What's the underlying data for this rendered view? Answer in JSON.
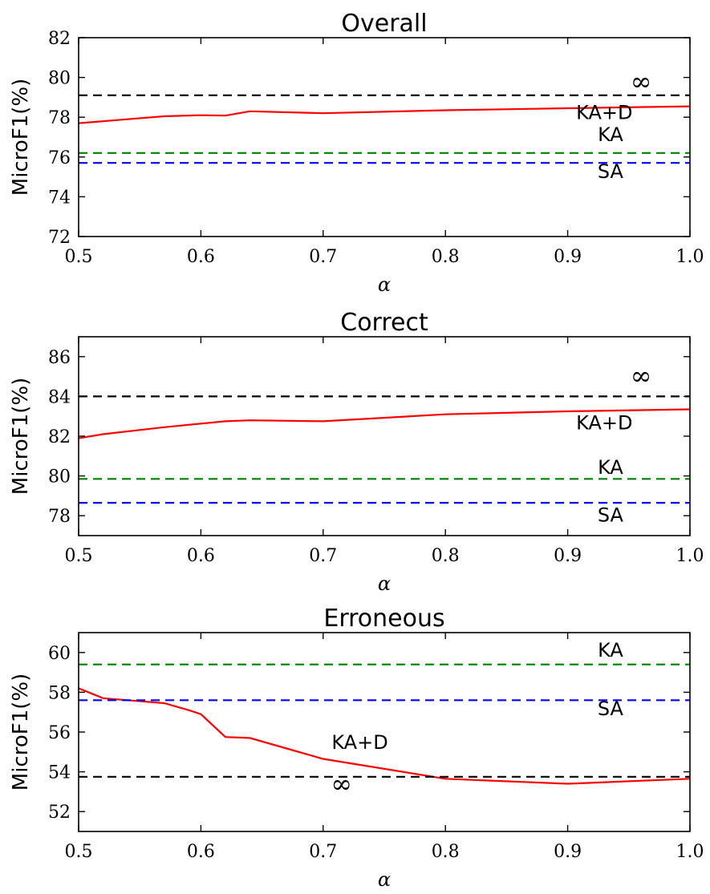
{
  "chart_data": [
    {
      "type": "line",
      "title": "Overall",
      "xlabel": "α",
      "ylabel": "MicroF1(%)",
      "xlim": [
        0.5,
        1.0
      ],
      "ylim": [
        72,
        82
      ],
      "xticks": [
        0.5,
        0.6,
        0.7,
        0.8,
        0.9,
        1.0
      ],
      "xtick_labels": [
        "0.5",
        "0.6",
        "0.7",
        "0.8",
        "0.9",
        "1.0"
      ],
      "yticks": [
        72,
        74,
        76,
        78,
        80,
        82
      ],
      "ytick_labels": [
        "72",
        "74",
        "76",
        "78",
        "80",
        "82"
      ],
      "grid": false,
      "series": [
        {
          "name": "KA+D",
          "style": "solid",
          "color": "#ff0000",
          "x": [
            0.5,
            0.52,
            0.54,
            0.57,
            0.6,
            0.62,
            0.64,
            0.7,
            0.8,
            0.9,
            1.0
          ],
          "y": [
            77.7,
            77.8,
            77.9,
            78.05,
            78.1,
            78.08,
            78.3,
            78.2,
            78.35,
            78.45,
            78.55
          ]
        },
        {
          "name": "∞",
          "style": "dashed",
          "color": "#000000",
          "x": [
            0.5,
            1.0
          ],
          "y": [
            79.1,
            79.1
          ]
        },
        {
          "name": "KA",
          "style": "dashed",
          "color": "#008000",
          "x": [
            0.5,
            1.0
          ],
          "y": [
            76.2,
            76.2
          ]
        },
        {
          "name": "SA",
          "style": "dashed",
          "color": "#0000ff",
          "x": [
            0.5,
            1.0
          ],
          "y": [
            75.7,
            75.7
          ]
        }
      ],
      "annotations": [
        {
          "text": "∞",
          "x": 0.96,
          "y": 79.35
        },
        {
          "text": "KA+D",
          "x": 0.93,
          "y": 77.9
        },
        {
          "text": "KA",
          "x": 0.935,
          "y": 76.8
        },
        {
          "text": "SA",
          "x": 0.935,
          "y": 74.95
        }
      ]
    },
    {
      "type": "line",
      "title": "Correct",
      "xlabel": "α",
      "ylabel": "MicroF1(%)",
      "xlim": [
        0.5,
        1.0
      ],
      "ylim": [
        77,
        87
      ],
      "xticks": [
        0.5,
        0.6,
        0.7,
        0.8,
        0.9,
        1.0
      ],
      "xtick_labels": [
        "0.5",
        "0.6",
        "0.7",
        "0.8",
        "0.9",
        "1.0"
      ],
      "yticks": [
        78,
        80,
        82,
        84,
        86
      ],
      "ytick_labels": [
        "78",
        "80",
        "82",
        "84",
        "86"
      ],
      "grid": false,
      "series": [
        {
          "name": "KA+D",
          "style": "solid",
          "color": "#ff0000",
          "x": [
            0.5,
            0.52,
            0.57,
            0.62,
            0.64,
            0.7,
            0.8,
            0.9,
            1.0
          ],
          "y": [
            81.9,
            82.1,
            82.45,
            82.75,
            82.8,
            82.75,
            83.1,
            83.25,
            83.35
          ]
        },
        {
          "name": "∞",
          "style": "dashed",
          "color": "#000000",
          "x": [
            0.5,
            1.0
          ],
          "y": [
            84.0,
            84.0
          ]
        },
        {
          "name": "KA",
          "style": "dashed",
          "color": "#008000",
          "x": [
            0.5,
            1.0
          ],
          "y": [
            79.85,
            79.85
          ]
        },
        {
          "name": "SA",
          "style": "dashed",
          "color": "#0000ff",
          "x": [
            0.5,
            1.0
          ],
          "y": [
            78.65,
            78.65
          ]
        }
      ],
      "annotations": [
        {
          "text": "∞",
          "x": 0.96,
          "y": 84.6
        },
        {
          "text": "KA+D",
          "x": 0.93,
          "y": 82.35
        },
        {
          "text": "KA",
          "x": 0.935,
          "y": 80.1
        },
        {
          "text": "SA",
          "x": 0.935,
          "y": 77.7
        }
      ]
    },
    {
      "type": "line",
      "title": "Erroneous",
      "xlabel": "α",
      "ylabel": "MicroF1(%)",
      "xlim": [
        0.5,
        1.0
      ],
      "ylim": [
        51,
        61
      ],
      "xticks": [
        0.5,
        0.6,
        0.7,
        0.8,
        0.9,
        1.0
      ],
      "xtick_labels": [
        "0.5",
        "0.6",
        "0.7",
        "0.8",
        "0.9",
        "1.0"
      ],
      "yticks": [
        52,
        54,
        56,
        58,
        60
      ],
      "ytick_labels": [
        "52",
        "54",
        "56",
        "58",
        "60"
      ],
      "grid": false,
      "series": [
        {
          "name": "KA+D",
          "style": "solid",
          "color": "#ff0000",
          "x": [
            0.5,
            0.52,
            0.54,
            0.57,
            0.59,
            0.6,
            0.62,
            0.64,
            0.7,
            0.8,
            0.9,
            1.0
          ],
          "y": [
            58.2,
            57.7,
            57.6,
            57.45,
            57.1,
            56.9,
            55.75,
            55.7,
            54.65,
            53.65,
            53.4,
            53.65
          ]
        },
        {
          "name": "∞",
          "style": "dashed",
          "color": "#000000",
          "x": [
            0.5,
            1.0
          ],
          "y": [
            53.75,
            53.75
          ]
        },
        {
          "name": "KA",
          "style": "dashed",
          "color": "#008000",
          "x": [
            0.5,
            1.0
          ],
          "y": [
            59.4,
            59.4
          ]
        },
        {
          "name": "SA",
          "style": "dashed",
          "color": "#0000ff",
          "x": [
            0.5,
            1.0
          ],
          "y": [
            57.6,
            57.6
          ]
        }
      ],
      "annotations": [
        {
          "text": "KA",
          "x": 0.935,
          "y": 59.8
        },
        {
          "text": "SA",
          "x": 0.935,
          "y": 56.85
        },
        {
          "text": "KA+D",
          "x": 0.73,
          "y": 55.15
        },
        {
          "text": "∞",
          "x": 0.715,
          "y": 52.95
        }
      ]
    }
  ]
}
